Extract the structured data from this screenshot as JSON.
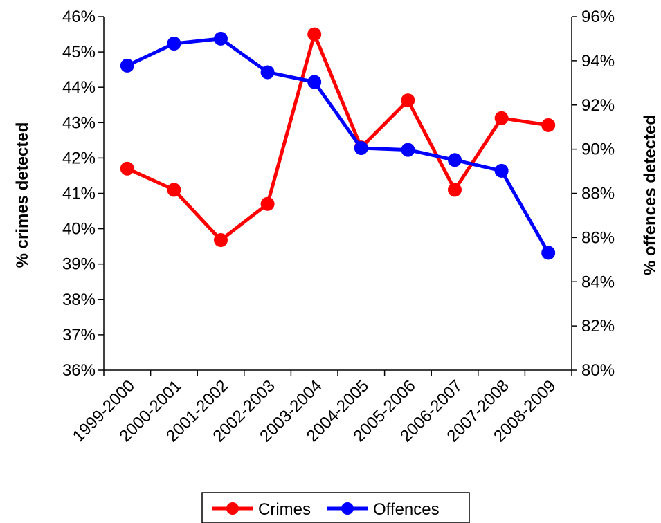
{
  "chart_data": {
    "type": "line",
    "categories": [
      "1999-2000",
      "2000-2001",
      "2001-2002",
      "2002-2003",
      "2003-2004",
      "2004-2005",
      "2005-2006",
      "2006-2007",
      "2007-2008",
      "2008-2009"
    ],
    "series": [
      {
        "name": "Crimes",
        "axis": "left",
        "color": "#ff0000",
        "values": [
          41.7,
          41.1,
          39.68,
          40.7,
          45.5,
          42.3,
          43.63,
          41.1,
          43.13,
          42.93
        ]
      },
      {
        "name": "Offences",
        "axis": "right",
        "color": "#0000ff",
        "values": [
          93.78,
          94.78,
          95.0,
          93.48,
          93.04,
          90.05,
          89.97,
          89.51,
          89.02,
          85.31
        ]
      }
    ],
    "ylabel_left": "% crimes detected",
    "ylabel_right": "% offences detected",
    "ylim_left": [
      36,
      46
    ],
    "ylim_right": [
      80,
      96
    ],
    "yticks_left": [
      "36%",
      "37%",
      "38%",
      "39%",
      "40%",
      "41%",
      "42%",
      "43%",
      "44%",
      "45%",
      "46%"
    ],
    "yticks_right": [
      "80%",
      "82%",
      "84%",
      "86%",
      "88%",
      "90%",
      "92%",
      "94%",
      "96%"
    ],
    "grid": false,
    "legend_position": "bottom-center"
  }
}
